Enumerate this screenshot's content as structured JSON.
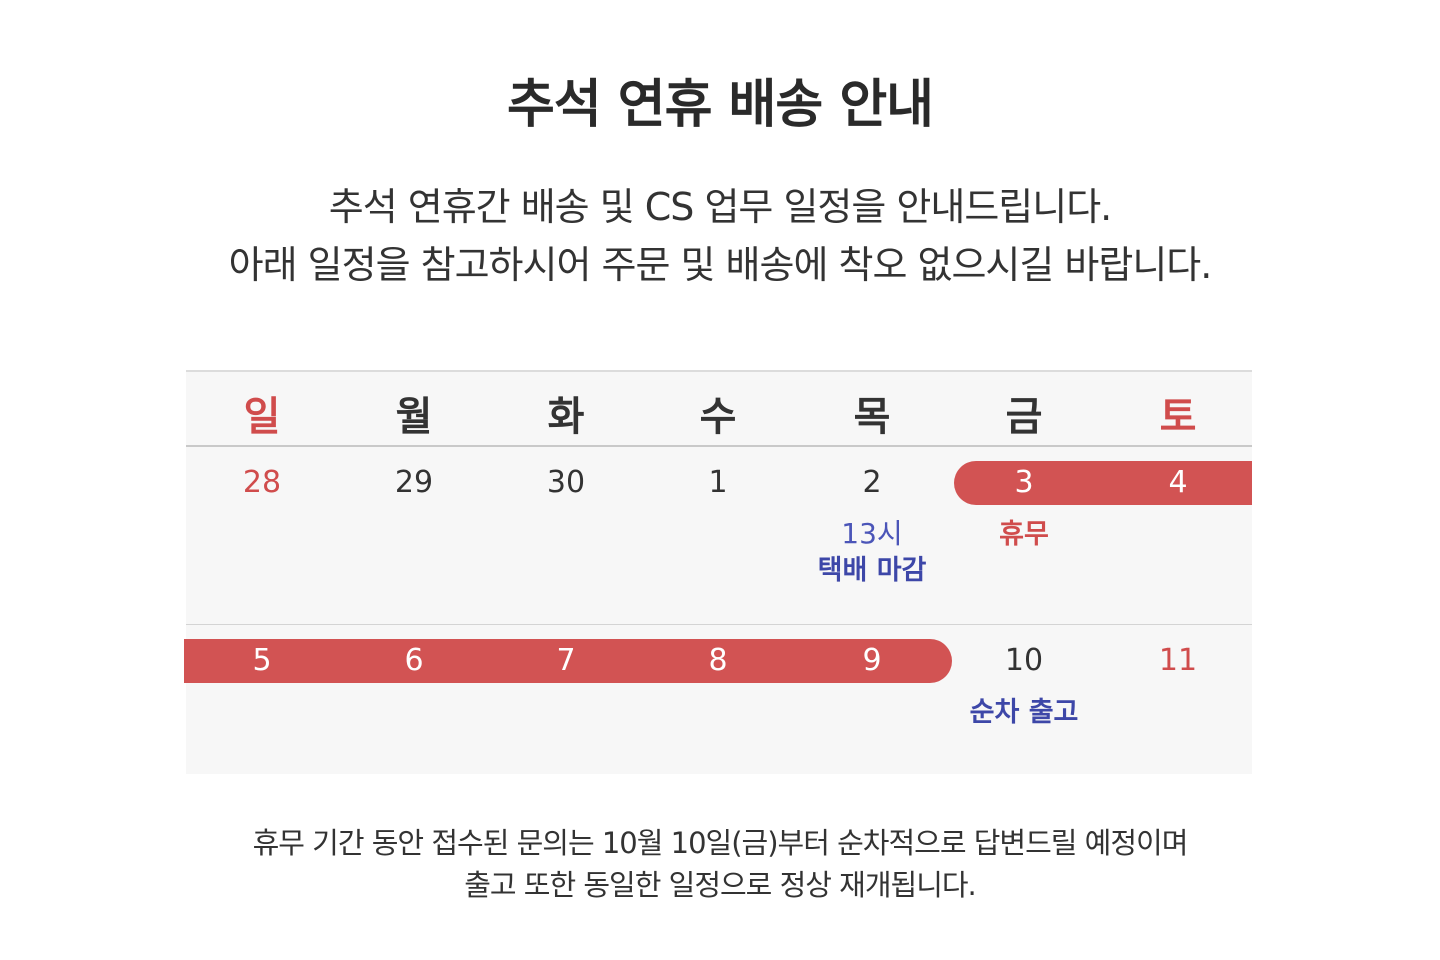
{
  "title": "추석 연휴 배송 안내",
  "intro": {
    "line1": "추석 연휴간 배송 및 CS 업무 일정을 안내드립니다.",
    "line2": "아래 일정을 참고하시어 주문 및 배송에 착오 없으시길 바랍니다."
  },
  "calendar": {
    "weekdays": [
      "일",
      "월",
      "화",
      "수",
      "목",
      "금",
      "토"
    ],
    "week1": {
      "days": [
        "28",
        "29",
        "30",
        "1",
        "2",
        "3",
        "4"
      ],
      "notes": {
        "thu_time": "13시",
        "thu_label": "택배 마감",
        "fri_label": "휴무"
      }
    },
    "week2": {
      "days": [
        "5",
        "6",
        "7",
        "8",
        "9",
        "10",
        "11"
      ],
      "notes": {
        "fri_label": "순차 출고"
      }
    },
    "holiday_color": "#d25353",
    "accent_blue": "#3d47a8",
    "sunday_saturday_color": "#d04c4c"
  },
  "footer": {
    "line1": "휴무 기간 동안 접수된 문의는 10월 10일(금)부터 순차적으로 답변드릴 예정이며",
    "line2": "출고 또한 동일한 일정으로 정상 재개됩니다."
  }
}
